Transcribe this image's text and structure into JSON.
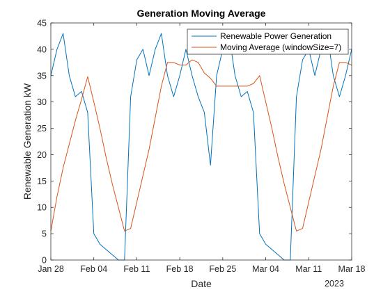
{
  "chart_data": {
    "type": "line",
    "title": "Generation Moving Average",
    "xlabel": "Date",
    "ylabel": "Renewable Generation kW",
    "x_year_label": "2023",
    "x_start": "2023-01-28",
    "x_end": "2023-03-18",
    "ylim": [
      0,
      45
    ],
    "yticks": [
      0,
      5,
      10,
      15,
      20,
      25,
      30,
      35,
      40,
      45
    ],
    "xticks": [
      {
        "date": "2023-01-28",
        "label": "Jan 28"
      },
      {
        "date": "2023-02-04",
        "label": "Feb 04"
      },
      {
        "date": "2023-02-11",
        "label": "Feb 11"
      },
      {
        "date": "2023-02-18",
        "label": "Feb 18"
      },
      {
        "date": "2023-02-25",
        "label": "Feb 25"
      },
      {
        "date": "2023-03-04",
        "label": "Mar 04"
      },
      {
        "date": "2023-03-11",
        "label": "Mar 11"
      },
      {
        "date": "2023-03-18",
        "label": "Mar 18"
      }
    ],
    "legend_position": "top-right",
    "x": [
      "2023-01-28",
      "2023-01-29",
      "2023-01-30",
      "2023-01-31",
      "2023-02-01",
      "2023-02-02",
      "2023-02-03",
      "2023-02-04",
      "2023-02-05",
      "2023-02-06",
      "2023-02-07",
      "2023-02-08",
      "2023-02-09",
      "2023-02-10",
      "2023-02-11",
      "2023-02-12",
      "2023-02-13",
      "2023-02-14",
      "2023-02-15",
      "2023-02-16",
      "2023-02-17",
      "2023-02-18",
      "2023-02-19",
      "2023-02-20",
      "2023-02-21",
      "2023-02-22",
      "2023-02-23",
      "2023-02-24",
      "2023-02-25",
      "2023-02-26",
      "2023-02-27",
      "2023-02-28",
      "2023-03-01",
      "2023-03-02",
      "2023-03-03",
      "2023-03-04",
      "2023-03-05",
      "2023-03-06",
      "2023-03-07",
      "2023-03-08",
      "2023-03-09",
      "2023-03-10",
      "2023-03-11",
      "2023-03-12",
      "2023-03-13",
      "2023-03-14",
      "2023-03-15",
      "2023-03-16",
      "2023-03-17",
      "2023-03-18"
    ],
    "series": [
      {
        "name": "Renewable Power Generation",
        "color": "#0072BD",
        "values": [
          35,
          40,
          43,
          35,
          31,
          32,
          28,
          5,
          3,
          2,
          1,
          0,
          0,
          31,
          38,
          40,
          35,
          40,
          43,
          35,
          31,
          35,
          40,
          35,
          31,
          28,
          18,
          35,
          40,
          43,
          35,
          31,
          32,
          28,
          5,
          3,
          2,
          1,
          0,
          0,
          31,
          38,
          40,
          35,
          40,
          43,
          35,
          31,
          35,
          40
        ]
      },
      {
        "name": "Moving Average (windowSize=7)",
        "color": "#D95319",
        "values": [
          5.5,
          12,
          17.5,
          22,
          26.5,
          30.5,
          34.8,
          30,
          25,
          19.5,
          14.5,
          10,
          5.5,
          6,
          11,
          16,
          21,
          27,
          33,
          37.5,
          37.5,
          37,
          37,
          38,
          37.5,
          35.5,
          34.5,
          33,
          33,
          33,
          33,
          33,
          33,
          33.5,
          35,
          30,
          25,
          19.5,
          14.5,
          10,
          5.5,
          6,
          11,
          16,
          21,
          27,
          33,
          37.5,
          37.5,
          37
        ]
      }
    ]
  }
}
